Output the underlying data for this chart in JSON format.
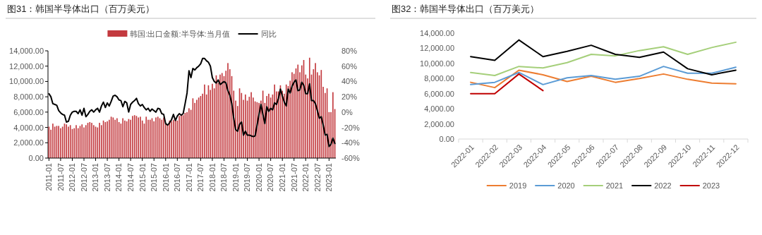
{
  "chart_data": [
    {
      "type": "bar",
      "title": "图31：韩国半导体出口（百万美元）",
      "categories": [
        "2011-01",
        null,
        null,
        null,
        null,
        null,
        "2011-07",
        null,
        null,
        null,
        null,
        null,
        "2012-01",
        null,
        null,
        null,
        null,
        null,
        "2012-07",
        null,
        null,
        null,
        null,
        null,
        "2013-01",
        null,
        null,
        null,
        null,
        null,
        "2013-07",
        null,
        null,
        null,
        null,
        null,
        "2014-01",
        null,
        null,
        null,
        null,
        null,
        "2014-07",
        null,
        null,
        null,
        null,
        null,
        "2015-01",
        null,
        null,
        null,
        null,
        null,
        "2015-07",
        null,
        null,
        null,
        null,
        null,
        "2016-01",
        null,
        null,
        null,
        null,
        null,
        "2016-07",
        null,
        null,
        null,
        null,
        null,
        "2017-01",
        null,
        null,
        null,
        null,
        null,
        "2017-07",
        null,
        null,
        null,
        null,
        null,
        "2018-01",
        null,
        null,
        null,
        null,
        null,
        "2018-07",
        null,
        null,
        null,
        null,
        null,
        "2019-01",
        null,
        null,
        null,
        null,
        null,
        "2019-07",
        null,
        null,
        null,
        null,
        null,
        "2020-01",
        null,
        null,
        null,
        null,
        null,
        "2020-07",
        null,
        null,
        null,
        null,
        null,
        "2021-01",
        null,
        null,
        null,
        null,
        null,
        "2021-07",
        null,
        null,
        null,
        null,
        null,
        "2022-01",
        null,
        null,
        null,
        null,
        null,
        "2022-07",
        null,
        null,
        null,
        null,
        null,
        "2023-01",
        null,
        null,
        null
      ],
      "series": [
        {
          "name": "韩国:出口金额:半导体:当月值",
          "color": "#c33a3f",
          "values": [
            4100,
            3700,
            4500,
            4100,
            4200,
            4200,
            3900,
            4100,
            4500,
            4400,
            4100,
            4300,
            3800,
            3900,
            4300,
            3900,
            4200,
            4400,
            4000,
            4300,
            4600,
            4700,
            4600,
            4300,
            4100,
            4000,
            4600,
            4300,
            4900,
            4700,
            4800,
            5000,
            5400,
            5300,
            5000,
            5200,
            4700,
            4500,
            5200,
            4900,
            4800,
            5100,
            5000,
            5500,
            5600,
            5500,
            5300,
            5400,
            4900,
            4500,
            5400,
            5000,
            5000,
            5200,
            4800,
            5300,
            5400,
            5200,
            5000,
            5300,
            4600,
            4300,
            4900,
            4800,
            5000,
            5200,
            4900,
            5500,
            5700,
            5600,
            5900,
            6000,
            6500,
            6300,
            7800,
            7200,
            7600,
            7900,
            8100,
            8400,
            9600,
            8300,
            9500,
            8900,
            9700,
            9100,
            10800,
            9800,
            10900,
            11100,
            10700,
            11400,
            12400,
            11600,
            10700,
            8800,
            7500,
            6800,
            9100,
            8500,
            7600,
            8300,
            7500,
            8000,
            8600,
            7900,
            7400,
            7300,
            7200,
            7500,
            8800,
            7200,
            8100,
            8400,
            7900,
            8300,
            9600,
            8700,
            8700,
            9500,
            8800,
            8400,
            9600,
            9400,
            10100,
            11200,
            11000,
            11700,
            12200,
            11200,
            12100,
            12800,
            10900,
            10400,
            13100,
            10900,
            11600,
            12400,
            11200,
            10800,
            11500,
            9300,
            8500,
            9100,
            6000,
            6000,
            8600,
            6400
          ]
        },
        {
          "name": "同比",
          "type": "line",
          "axis": "y2",
          "color": "#000000",
          "values": [
            24,
            20,
            11,
            10,
            9,
            2,
            -1,
            -3,
            -4,
            -13,
            -12,
            -4,
            0,
            1,
            1,
            -2,
            3,
            -4,
            5,
            -6,
            -3,
            1,
            3,
            0,
            3,
            5,
            0,
            8,
            13,
            6,
            12,
            8,
            14,
            21,
            22,
            20,
            16,
            15,
            7,
            14,
            12,
            0,
            10,
            13,
            15,
            18,
            11,
            8,
            10,
            6,
            3,
            5,
            1,
            4,
            2,
            0,
            5,
            4,
            -2,
            -3,
            -15,
            -17,
            -14,
            -10,
            -3,
            -11,
            -5,
            -2,
            -4,
            -2,
            11,
            25,
            54,
            45,
            57,
            55,
            58,
            60,
            63,
            70,
            70,
            67,
            65,
            60,
            45,
            40,
            38,
            42,
            36,
            38,
            40,
            38,
            28,
            22,
            11,
            -8,
            -23,
            -25,
            -16,
            -13,
            -30,
            -25,
            -30,
            -30,
            -31,
            -32,
            -31,
            -17,
            -3,
            10,
            -3,
            -15,
            7,
            1,
            5,
            3,
            12,
            10,
            18,
            30,
            21,
            13,
            8,
            30,
            25,
            34,
            39,
            42,
            28,
            29,
            39,
            35,
            24,
            24,
            37,
            15,
            15,
            11,
            2,
            -8,
            -6,
            -17,
            -30,
            -29,
            -45,
            -42,
            -34,
            -41
          ]
        }
      ],
      "ylim": [
        0,
        14000
      ],
      "yticks": [
        {
          "value": 0,
          "label": "0.00"
        },
        {
          "value": 2000,
          "label": "2,000.00"
        },
        {
          "value": 4000,
          "label": "4,000.00"
        },
        {
          "value": 6000,
          "label": "6,000.00"
        },
        {
          "value": 8000,
          "label": "8,000.00"
        },
        {
          "value": 10000,
          "label": "10,000.00"
        },
        {
          "value": 12000,
          "label": "12,000.00"
        },
        {
          "value": 14000,
          "label": "14,000.00"
        }
      ],
      "y2lim": [
        -60,
        80
      ],
      "y2ticks": [
        {
          "value": -60,
          "label": "-60%"
        },
        {
          "value": -40,
          "label": "-40%"
        },
        {
          "value": -20,
          "label": "-20%"
        },
        {
          "value": 0,
          "label": "0%"
        },
        {
          "value": 20,
          "label": "20%"
        },
        {
          "value": 40,
          "label": "40%"
        },
        {
          "value": 60,
          "label": "60%"
        },
        {
          "value": 80,
          "label": "80%"
        }
      ],
      "legend": "top"
    },
    {
      "type": "line",
      "title": "图32：韩国半导体出口（百万美元）",
      "categories": [
        "2022-01",
        "2022-02",
        "2022-03",
        "2022-04",
        "2022-05",
        "2022-06",
        "2022-07",
        "2022-08",
        "2022-09",
        "2022-10",
        "2022-11",
        "2022-12"
      ],
      "series": [
        {
          "name": "2019",
          "color": "#ed7d31",
          "values": [
            7500,
            6800,
            9100,
            8500,
            7600,
            8300,
            7500,
            8000,
            8600,
            7900,
            7400,
            7300
          ]
        },
        {
          "name": "2020",
          "color": "#5b9bd5",
          "values": [
            7200,
            7500,
            8800,
            7200,
            8100,
            8400,
            7900,
            8300,
            9600,
            8700,
            8700,
            9500
          ]
        },
        {
          "name": "2021",
          "color": "#a5cf7a",
          "values": [
            8800,
            8400,
            9600,
            9400,
            10100,
            11200,
            11000,
            11700,
            12200,
            11200,
            12100,
            12800
          ]
        },
        {
          "name": "2022",
          "color": "#000000",
          "values": [
            10900,
            10400,
            13100,
            10900,
            11600,
            12400,
            11200,
            10800,
            11500,
            9300,
            8500,
            9100
          ]
        },
        {
          "name": "2023",
          "color": "#c00000",
          "values": [
            6000,
            6000,
            8600,
            6400,
            null,
            null,
            null,
            null,
            null,
            null,
            null,
            null
          ]
        }
      ],
      "ylim": [
        0,
        14000
      ],
      "yticks": [
        {
          "value": 0,
          "label": "0.00"
        },
        {
          "value": 2000,
          "label": "2,000.00"
        },
        {
          "value": 4000,
          "label": "4,000.00"
        },
        {
          "value": 6000,
          "label": "6,000.00"
        },
        {
          "value": 8000,
          "label": "8,000.00"
        },
        {
          "value": 10000,
          "label": "10,000.00"
        },
        {
          "value": 12000,
          "label": "12,000.00"
        },
        {
          "value": 14000,
          "label": "14,000.00"
        }
      ],
      "legend": "bottom"
    }
  ]
}
